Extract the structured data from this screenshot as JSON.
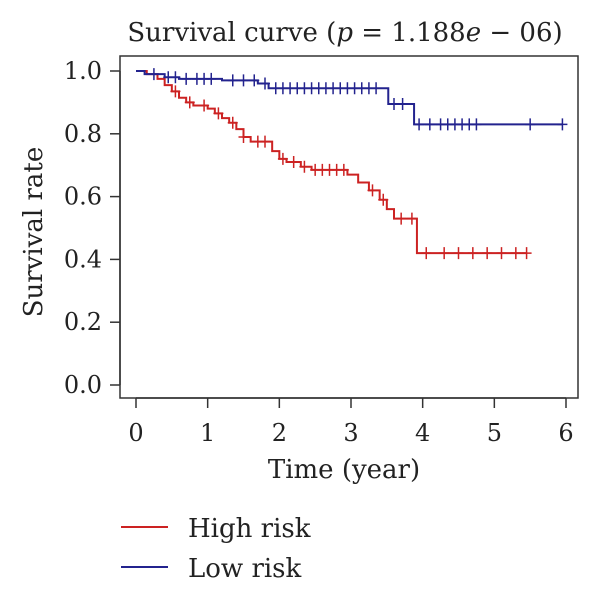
{
  "chart_data": {
    "type": "line",
    "title": "Survival curve (p = 1.188e − 06)",
    "title_parts": {
      "prefix": "Survival curve (",
      "p_symbol": "p",
      "middle": " = 1.188",
      "e_symbol": "e",
      "suffix": " − 06)"
    },
    "xlabel": "Time (year)",
    "ylabel": "Survival rate",
    "xlim": [
      0,
      6
    ],
    "ylim": [
      0,
      1
    ],
    "x_ticks": [
      "0",
      "1",
      "2",
      "3",
      "4",
      "5",
      "6"
    ],
    "y_ticks": [
      "0.0",
      "0.2",
      "0.4",
      "0.6",
      "0.8",
      "1.0"
    ],
    "grid": false,
    "legend_position": "bottom-left",
    "series": [
      {
        "name": "High risk",
        "color": "#cc2222",
        "steps": [
          [
            0,
            1.0
          ],
          [
            0.15,
            0.99
          ],
          [
            0.3,
            0.975
          ],
          [
            0.4,
            0.955
          ],
          [
            0.5,
            0.935
          ],
          [
            0.6,
            0.915
          ],
          [
            0.7,
            0.9
          ],
          [
            0.8,
            0.89
          ],
          [
            1.0,
            0.88
          ],
          [
            1.1,
            0.865
          ],
          [
            1.2,
            0.85
          ],
          [
            1.3,
            0.835
          ],
          [
            1.4,
            0.815
          ],
          [
            1.5,
            0.79
          ],
          [
            1.6,
            0.775
          ],
          [
            1.9,
            0.745
          ],
          [
            2.0,
            0.72
          ],
          [
            2.1,
            0.71
          ],
          [
            2.3,
            0.695
          ],
          [
            2.45,
            0.685
          ],
          [
            2.95,
            0.67
          ],
          [
            3.1,
            0.645
          ],
          [
            3.25,
            0.62
          ],
          [
            3.4,
            0.59
          ],
          [
            3.5,
            0.56
          ],
          [
            3.6,
            0.53
          ],
          [
            3.92,
            0.42
          ],
          [
            5.45,
            0.42
          ]
        ],
        "censor_x": [
          0.55,
          0.75,
          0.95,
          1.15,
          1.35,
          1.5,
          1.7,
          1.8,
          2.05,
          2.2,
          2.35,
          2.5,
          2.6,
          2.7,
          2.8,
          2.9,
          3.3,
          3.45,
          3.7,
          3.85,
          4.05,
          4.3,
          4.5,
          4.7,
          4.9,
          5.1,
          5.3,
          5.45
        ]
      },
      {
        "name": "Low risk",
        "color": "#23238e",
        "steps": [
          [
            0,
            1.0
          ],
          [
            0.12,
            0.99
          ],
          [
            0.4,
            0.98
          ],
          [
            0.6,
            0.975
          ],
          [
            1.2,
            0.97
          ],
          [
            1.7,
            0.96
          ],
          [
            1.85,
            0.945
          ],
          [
            3.52,
            0.895
          ],
          [
            3.88,
            0.83
          ],
          [
            5.95,
            0.83
          ]
        ],
        "censor_x": [
          0.25,
          0.45,
          0.55,
          0.7,
          0.85,
          0.95,
          1.05,
          1.35,
          1.5,
          1.65,
          1.8,
          1.95,
          2.05,
          2.15,
          2.25,
          2.35,
          2.45,
          2.55,
          2.65,
          2.75,
          2.85,
          2.95,
          3.05,
          3.15,
          3.25,
          3.35,
          3.6,
          3.72,
          3.95,
          4.1,
          4.25,
          4.35,
          4.45,
          4.55,
          4.65,
          4.75,
          5.5,
          5.95
        ]
      }
    ]
  }
}
